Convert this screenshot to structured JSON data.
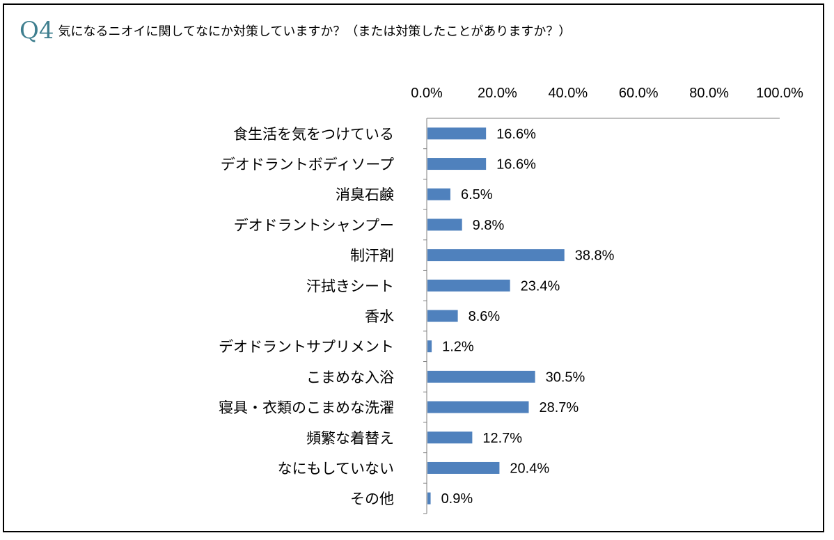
{
  "title": {
    "badge": "Q4",
    "text": "気になるニオイに関してなにか対策していますか？（または対策したことがありますか？）"
  },
  "colors": {
    "bar": "#4f81bd",
    "badge": "#3f7f8f",
    "axis": "#7f7f7f"
  },
  "chart_data": {
    "type": "bar",
    "orientation": "horizontal",
    "xlim": [
      0,
      100
    ],
    "tick_values": [
      0,
      20,
      40,
      60,
      80,
      100
    ],
    "tick_labels": [
      "0.0%",
      "20.0%",
      "40.0%",
      "60.0%",
      "80.0%",
      "100.0%"
    ],
    "axis_position": "top",
    "grid": false,
    "categories": [
      "食生活を気をつけている",
      "デオドラントボディソープ",
      "消臭石鹸",
      "デオドラントシャンプー",
      "制汗剤",
      "汗拭きシート",
      "香水",
      "デオドラントサプリメント",
      "こまめな入浴",
      "寝具・衣類のこまめな洗濯",
      "頻繁な着替え",
      "なにもしていない",
      "その他"
    ],
    "values": [
      16.6,
      16.6,
      6.5,
      9.8,
      38.8,
      23.4,
      8.6,
      1.2,
      30.5,
      28.7,
      12.7,
      20.4,
      0.9
    ],
    "value_labels": [
      "16.6%",
      "16.6%",
      "6.5%",
      "9.8%",
      "38.8%",
      "23.4%",
      "8.6%",
      "1.2%",
      "30.5%",
      "28.7%",
      "12.7%",
      "20.4%",
      "0.9%"
    ]
  }
}
